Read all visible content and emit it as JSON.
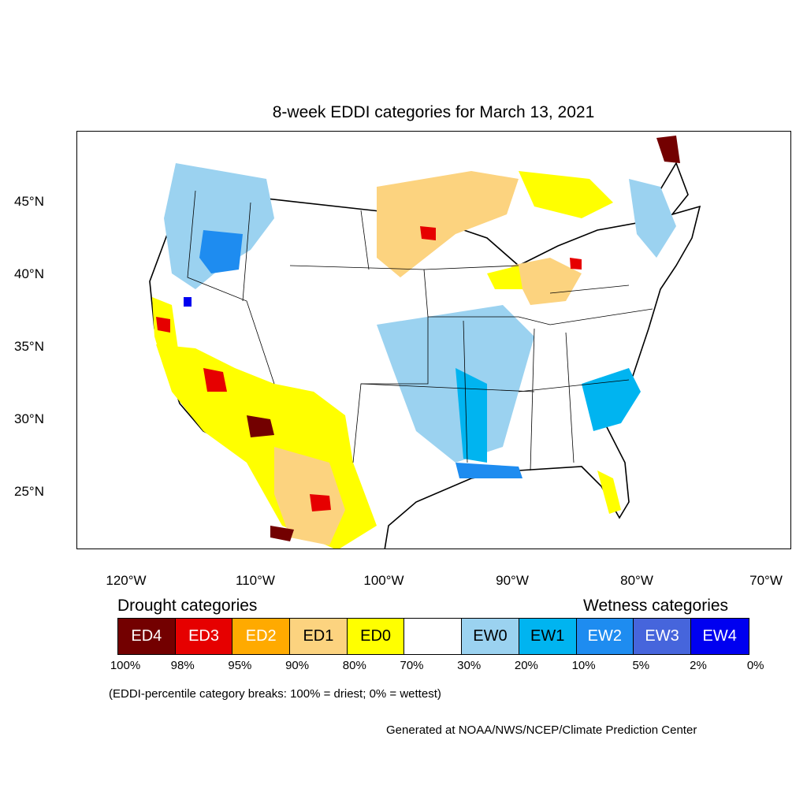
{
  "title": "8-week EDDI categories for March 13, 2021",
  "lat_labels": [
    "45°N",
    "40°N",
    "35°N",
    "30°N",
    "25°N"
  ],
  "lon_labels": [
    "120°W",
    "110°W",
    "100°W",
    "90°W",
    "80°W",
    "70°W"
  ],
  "legend": {
    "drought_heading": "Drought categories",
    "wetness_heading": "Wetness categories",
    "categories": [
      {
        "label": "ED4",
        "color": "#730000"
      },
      {
        "label": "ED3",
        "color": "#e60000"
      },
      {
        "label": "ED2",
        "color": "#ffaa00"
      },
      {
        "label": "ED1",
        "color": "#fcd37f"
      },
      {
        "label": "ED0",
        "color": "#ffff00"
      },
      {
        "label": "",
        "color": "#ffffff"
      },
      {
        "label": "EW0",
        "color": "#9bd2f0"
      },
      {
        "label": "EW1",
        "color": "#00b4f0"
      },
      {
        "label": "EW2",
        "color": "#1e8cf0"
      },
      {
        "label": "EW3",
        "color": "#4665dc"
      },
      {
        "label": "EW4",
        "color": "#0000f0"
      }
    ],
    "breaks": [
      "100%",
      "98%",
      "95%",
      "90%",
      "80%",
      "70%",
      "30%",
      "20%",
      "10%",
      "5%",
      "2%",
      "0%"
    ]
  },
  "note": "(EDDI-percentile category breaks: 100% = driest; 0% = wettest)",
  "credit": "Generated at NOAA/NWS/NCEP/Climate Prediction Center"
}
